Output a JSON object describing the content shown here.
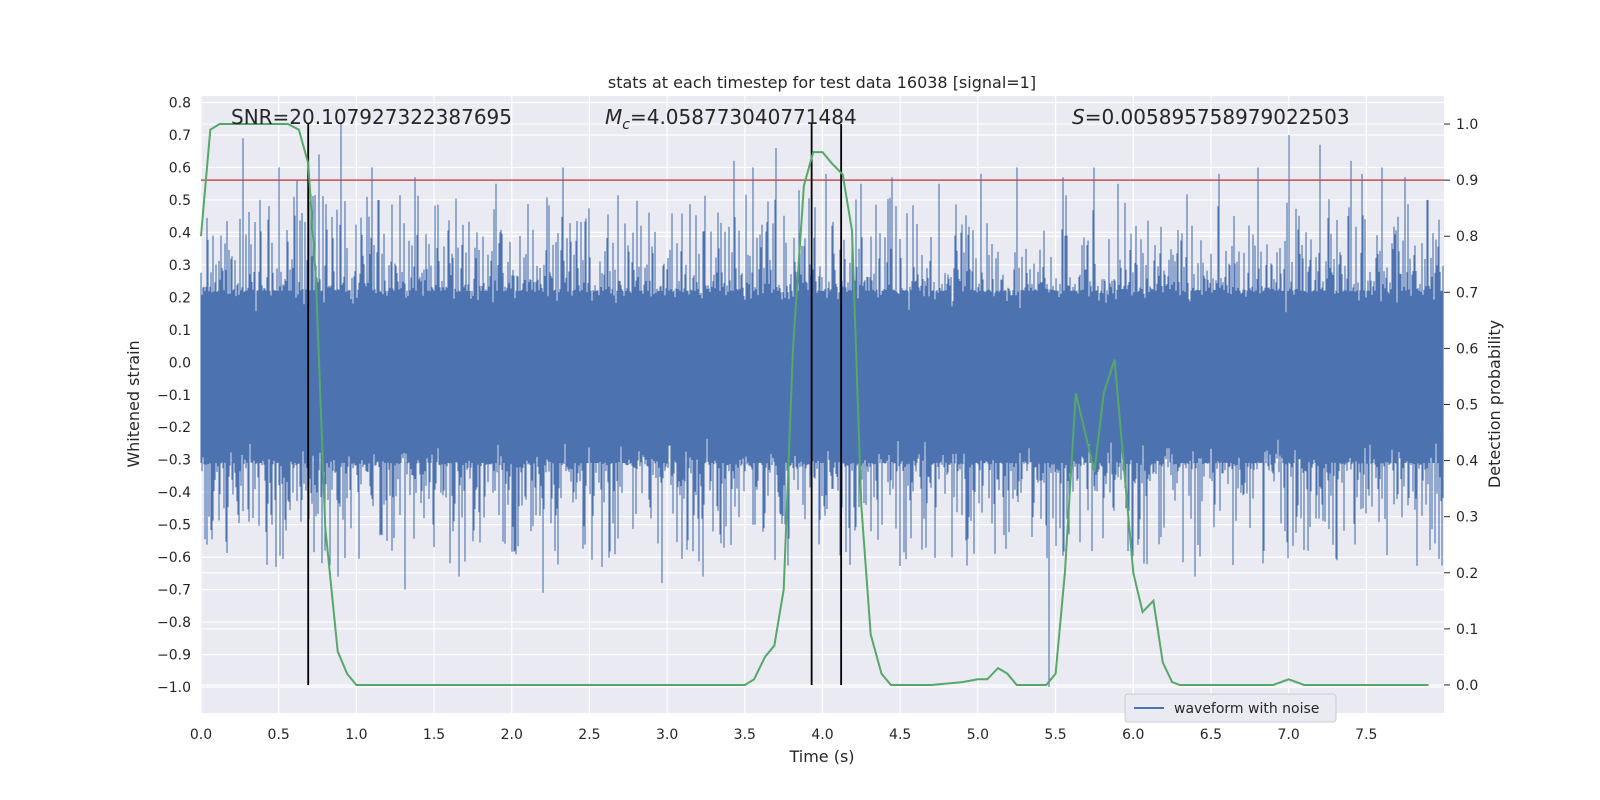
{
  "chart_data": {
    "type": "line",
    "title": "stats at each timestep for test data 16038 [signal=1]",
    "xlabel": "Time (s)",
    "ylabel": "Whitened strain",
    "y2label": "Detection probability",
    "xlim": [
      0.0,
      8.0
    ],
    "ylim": [
      -1.08,
      0.82
    ],
    "y2lim": [
      -0.05,
      1.05
    ],
    "xticks": [
      "0.0",
      "0.5",
      "1.0",
      "1.5",
      "2.0",
      "2.5",
      "3.0",
      "3.5",
      "4.0",
      "4.5",
      "5.0",
      "5.5",
      "6.0",
      "6.5",
      "7.0",
      "7.5"
    ],
    "yticks": [
      "0.8",
      "0.7",
      "0.6",
      "0.5",
      "0.4",
      "0.3",
      "0.2",
      "0.1",
      "0.0",
      "−0.1",
      "−0.2",
      "−0.3",
      "−0.4",
      "−0.5",
      "−0.6",
      "−0.7",
      "−0.8",
      "−0.9",
      "−1.0"
    ],
    "y2ticks": [
      "1.0",
      "0.9",
      "0.8",
      "0.7",
      "0.6",
      "0.5",
      "0.4",
      "0.3",
      "0.2",
      "0.1",
      "0.0"
    ],
    "legend": {
      "label": "waveform with noise",
      "placement": "lower-right"
    },
    "annotations": {
      "snr": "SNR=20.107927322387695",
      "mc_symbol": "M",
      "mc_sub": "c",
      "mc_value": "=4.058773040771484",
      "s_symbol": "S",
      "s_value": "=0.005895758979022503"
    },
    "threshold": {
      "value": 0.9,
      "axis": "y2",
      "color": "#c44e52"
    },
    "vlines": [
      0.69,
      3.93,
      4.12
    ],
    "colors": {
      "waveform": "#4c72b0",
      "probability": "#55a868",
      "threshold": "#c44e52",
      "vline": "#000000"
    },
    "waveform_envelope": {
      "note": "dense whitened strain, min/max per bin",
      "typical_high": 0.22,
      "typical_low": -0.31,
      "spikes": [
        {
          "t": 0.08,
          "v": 0.39
        },
        {
          "t": 0.15,
          "v": -0.45
        },
        {
          "t": 0.27,
          "v": 0.69
        },
        {
          "t": 0.38,
          "v": 0.5
        },
        {
          "t": 0.46,
          "v": -0.5
        },
        {
          "t": 0.5,
          "v": 0.6
        },
        {
          "t": 0.62,
          "v": 0.56
        },
        {
          "t": 0.76,
          "v": 0.64
        },
        {
          "t": 0.8,
          "v": -0.58
        },
        {
          "t": 0.9,
          "v": 0.74
        },
        {
          "t": 0.88,
          "v": -0.66
        },
        {
          "t": 1.1,
          "v": 0.6
        },
        {
          "t": 1.2,
          "v": -0.55
        },
        {
          "t": 1.31,
          "v": -0.7
        },
        {
          "t": 1.38,
          "v": 0.57
        },
        {
          "t": 1.66,
          "v": -0.66
        },
        {
          "t": 1.9,
          "v": 0.55
        },
        {
          "t": 2.02,
          "v": -0.58
        },
        {
          "t": 2.2,
          "v": -0.71
        },
        {
          "t": 2.33,
          "v": 0.6
        },
        {
          "t": 2.58,
          "v": -0.63
        },
        {
          "t": 2.97,
          "v": -0.68
        },
        {
          "t": 3.23,
          "v": -0.66
        },
        {
          "t": 3.43,
          "v": 0.62
        },
        {
          "t": 3.55,
          "v": 0.6
        },
        {
          "t": 3.7,
          "v": 0.66
        },
        {
          "t": 3.85,
          "v": 0.53
        },
        {
          "t": 4.02,
          "v": 0.58
        },
        {
          "t": 4.25,
          "v": 0.55
        },
        {
          "t": 4.45,
          "v": 0.57
        },
        {
          "t": 4.75,
          "v": 0.55
        },
        {
          "t": 5.02,
          "v": 0.58
        },
        {
          "t": 5.25,
          "v": 0.6
        },
        {
          "t": 5.46,
          "v": -1.0
        },
        {
          "t": 5.55,
          "v": 0.57
        },
        {
          "t": 5.75,
          "v": 0.6
        },
        {
          "t": 5.9,
          "v": 0.55
        },
        {
          "t": 6.07,
          "v": -0.62
        },
        {
          "t": 6.4,
          "v": -0.66
        },
        {
          "t": 6.55,
          "v": 0.58
        },
        {
          "t": 6.8,
          "v": 0.6
        },
        {
          "t": 7.0,
          "v": 0.7
        },
        {
          "t": 7.2,
          "v": 0.67
        },
        {
          "t": 7.4,
          "v": 0.62
        },
        {
          "t": 7.47,
          "v": 0.58
        },
        {
          "t": 7.6,
          "v": 0.6
        },
        {
          "t": 7.75,
          "v": 0.57
        },
        {
          "t": 7.9,
          "v": 0.5
        }
      ]
    },
    "probability_series": {
      "x": [
        0.0,
        0.06,
        0.12,
        0.25,
        0.38,
        0.5,
        0.56,
        0.63,
        0.69,
        0.74,
        0.8,
        0.88,
        0.94,
        1.0,
        1.1,
        1.2,
        1.25,
        1.3,
        1.5,
        1.7,
        1.8,
        2.0,
        2.3,
        2.6,
        3.0,
        3.3,
        3.5,
        3.56,
        3.63,
        3.69,
        3.75,
        3.81,
        3.88,
        3.94,
        4.0,
        4.06,
        4.13,
        4.19,
        4.25,
        4.31,
        4.38,
        4.44,
        4.5,
        4.7,
        4.9,
        5.0,
        5.06,
        5.13,
        5.19,
        5.25,
        5.31,
        5.38,
        5.44,
        5.5,
        5.56,
        5.63,
        5.69,
        5.75,
        5.81,
        5.88,
        5.94,
        6.0,
        6.06,
        6.13,
        6.19,
        6.25,
        6.3,
        6.5,
        6.8,
        6.9,
        7.0,
        7.1,
        7.3,
        7.6,
        7.9
      ],
      "y": [
        0.8,
        0.99,
        1.0,
        1.0,
        1.0,
        1.0,
        1.0,
        0.99,
        0.93,
        0.72,
        0.28,
        0.06,
        0.02,
        0.0,
        0.0,
        0.0,
        0.0,
        0.0,
        0.0,
        0.0,
        0.0,
        0.0,
        0.0,
        0.0,
        0.0,
        0.0,
        0.0,
        0.01,
        0.05,
        0.07,
        0.17,
        0.6,
        0.89,
        0.95,
        0.95,
        0.93,
        0.91,
        0.81,
        0.32,
        0.09,
        0.02,
        0.0,
        0.0,
        0.0,
        0.005,
        0.01,
        0.01,
        0.03,
        0.02,
        0.0,
        0.0,
        0.0,
        0.0,
        0.02,
        0.2,
        0.52,
        0.45,
        0.38,
        0.52,
        0.58,
        0.39,
        0.2,
        0.13,
        0.15,
        0.04,
        0.005,
        0.0,
        0.0,
        0.0,
        0.0,
        0.01,
        0.0,
        0.0,
        0.0,
        0.0
      ]
    }
  }
}
